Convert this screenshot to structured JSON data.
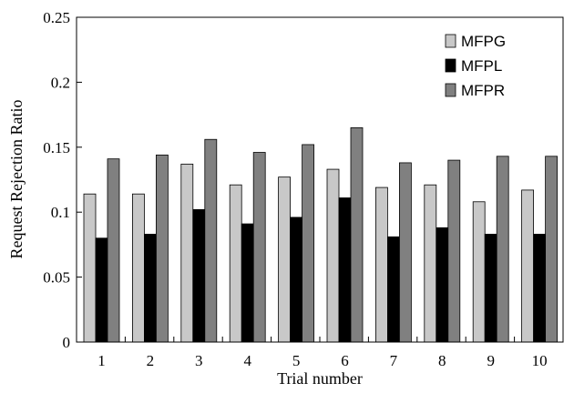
{
  "chart_data": {
    "type": "bar",
    "title": "",
    "xlabel": "Trial number",
    "ylabel": "Request Rejection Ratio",
    "ylim": [
      0,
      0.25
    ],
    "yticks": [
      "0",
      "0.05",
      "0.1",
      "0.15",
      "0.2",
      "0.25"
    ],
    "categories": [
      "1",
      "2",
      "3",
      "4",
      "5",
      "6",
      "7",
      "8",
      "9",
      "10"
    ],
    "series": [
      {
        "name": "MFPG",
        "color": "#c8c8c8",
        "values": [
          0.114,
          0.114,
          0.137,
          0.121,
          0.127,
          0.133,
          0.119,
          0.121,
          0.108,
          0.117
        ]
      },
      {
        "name": "MFPL",
        "color": "#000000",
        "values": [
          0.08,
          0.083,
          0.102,
          0.091,
          0.096,
          0.111,
          0.081,
          0.088,
          0.083,
          0.083
        ]
      },
      {
        "name": "MFPR",
        "color": "#808080",
        "values": [
          0.141,
          0.144,
          0.156,
          0.146,
          0.152,
          0.165,
          0.138,
          0.14,
          0.143,
          0.143
        ]
      }
    ],
    "legend_position": "top-right",
    "grid": false
  }
}
